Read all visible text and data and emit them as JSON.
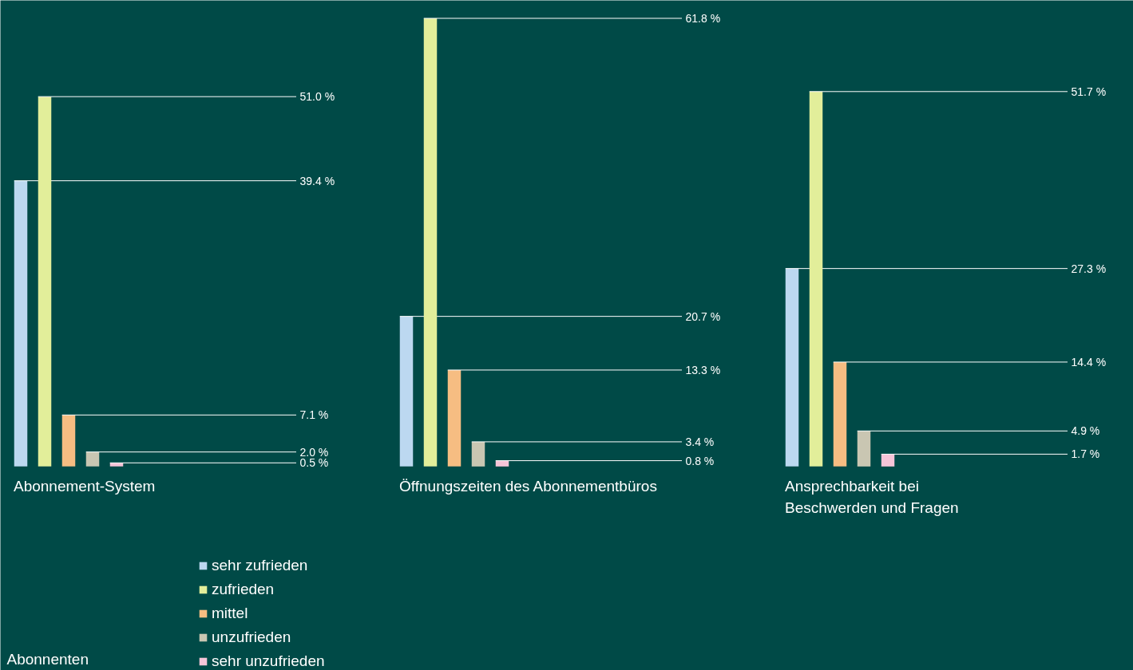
{
  "chart_data": {
    "type": "bar",
    "categories": [
      "Abonnement-System",
      "Öffnungszeiten des Abonnementbüros",
      "Ansprechbarkeit bei\nBeschwerden und Fragen"
    ],
    "legend": "bottom",
    "annotations": [
      "Abonnenten"
    ],
    "series": [
      {
        "name": "sehr zufrieden",
        "color": "#bcd8f0",
        "values": [
          39.4,
          20.7,
          27.3
        ],
        "value_labels": [
          "39.4 %",
          "20.7 %",
          "27.3 %"
        ]
      },
      {
        "name": "zufrieden",
        "color": "#e2ee9a",
        "values": [
          51.0,
          61.8,
          51.7
        ],
        "value_labels": [
          "51.0 %",
          "61.8 %",
          "51.7 %"
        ]
      },
      {
        "name": "mittel",
        "color": "#f6bd82",
        "values": [
          7.1,
          13.3,
          14.4
        ],
        "value_labels": [
          "7.1 %",
          "13.3 %",
          "14.4 %"
        ]
      },
      {
        "name": "unzufrieden",
        "color": "#c9c6b2",
        "values": [
          2.0,
          3.4,
          4.9
        ],
        "value_labels": [
          "2.0 %",
          "3.4 %",
          "4.9 %"
        ]
      },
      {
        "name": "sehr unzufrieden",
        "color": "#f6c5d8",
        "values": [
          0.5,
          0.8,
          1.7
        ],
        "value_labels": [
          "0.5 %",
          "0.8 %",
          "1.7 %"
        ]
      }
    ]
  }
}
